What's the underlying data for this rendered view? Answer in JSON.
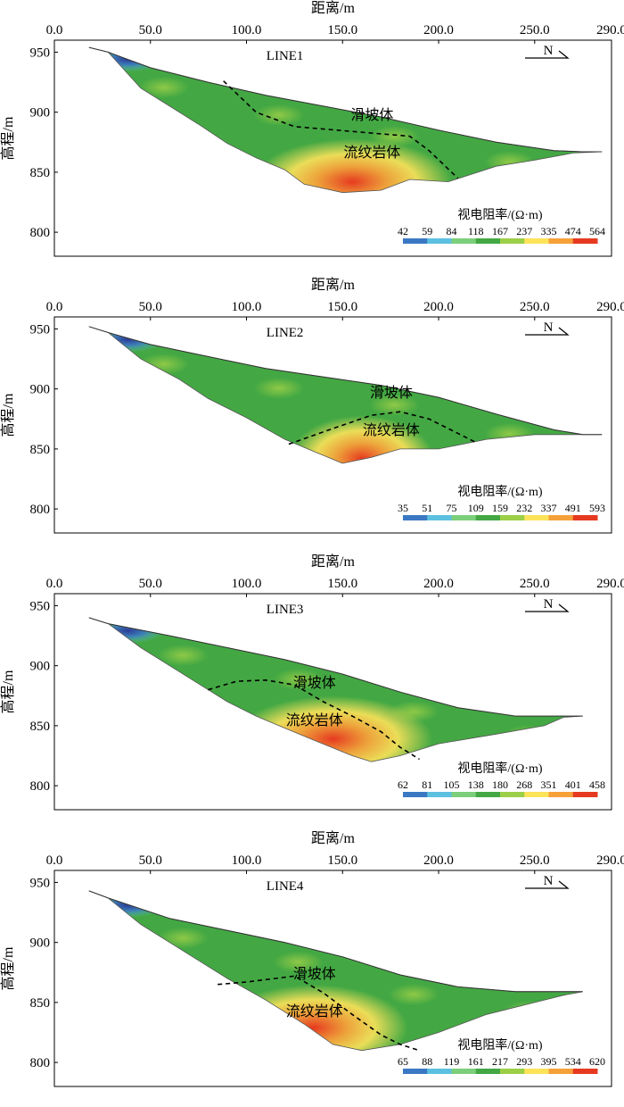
{
  "figure": {
    "xlabel": "距离/m",
    "ylabel": "高程/m",
    "north_label": "N",
    "colorbar_title": "视电阻率/(Ω·m)"
  },
  "colors": {
    "scale": [
      "#2c3a96",
      "#3b78c4",
      "#5cc0e0",
      "#7ccf7a",
      "#43a843",
      "#9ccf48",
      "#fde35a",
      "#f6a03a",
      "#e63a20"
    ],
    "frame": "#000000"
  },
  "chart_data": [
    {
      "type": "heatmap",
      "title": "LINE1",
      "x_ticks": [
        "0.0",
        "50.0",
        "100.0",
        "150.0",
        "200.0",
        "250.0",
        "290.0"
      ],
      "xlim": [
        0,
        290
      ],
      "y_ticks": [
        "950",
        "900",
        "850",
        "800"
      ],
      "ylim": [
        780,
        960
      ],
      "colorbar_labels": [
        "42",
        "59",
        "84",
        "118",
        "167",
        "237",
        "335",
        "474",
        "564"
      ],
      "labels": {
        "landslide": "滑坡体",
        "rhyolite": "流纹岩体"
      },
      "surface": [
        [
          18,
          954
        ],
        [
          28,
          950
        ],
        [
          50,
          937
        ],
        [
          80,
          925
        ],
        [
          110,
          914
        ],
        [
          140,
          905
        ],
        [
          170,
          896
        ],
        [
          200,
          885
        ],
        [
          230,
          875
        ],
        [
          260,
          868
        ],
        [
          275,
          867
        ],
        [
          285,
          867
        ]
      ],
      "bottom": [
        [
          28,
          950
        ],
        [
          45,
          920
        ],
        [
          60,
          905
        ],
        [
          75,
          890
        ],
        [
          90,
          874
        ],
        [
          105,
          862
        ],
        [
          120,
          852
        ],
        [
          130,
          840
        ],
        [
          150,
          833
        ],
        [
          170,
          835
        ],
        [
          185,
          844
        ],
        [
          205,
          842
        ],
        [
          230,
          855
        ],
        [
          250,
          860
        ],
        [
          270,
          866
        ]
      ],
      "boundary": [
        [
          88,
          926
        ],
        [
          105,
          900
        ],
        [
          125,
          888
        ],
        [
          170,
          882
        ],
        [
          185,
          880
        ],
        [
          195,
          868
        ],
        [
          210,
          845
        ]
      ],
      "high_zone": {
        "x": [
          115,
          205
        ],
        "center": [
          155,
          848
        ],
        "peak": 564
      }
    },
    {
      "type": "heatmap",
      "title": "LINE2",
      "x_ticks": [
        "0.0",
        "50.0",
        "100.0",
        "150.0",
        "200.0",
        "250.0",
        "290.0"
      ],
      "xlim": [
        0,
        290
      ],
      "y_ticks": [
        "950",
        "900",
        "850",
        "800"
      ],
      "ylim": [
        780,
        960
      ],
      "colorbar_labels": [
        "35",
        "51",
        "75",
        "109",
        "159",
        "232",
        "337",
        "491",
        "593"
      ],
      "labels": {
        "landslide": "滑坡体",
        "rhyolite": "流纹岩体"
      },
      "surface": [
        [
          18,
          952
        ],
        [
          28,
          947
        ],
        [
          50,
          937
        ],
        [
          80,
          927
        ],
        [
          110,
          917
        ],
        [
          140,
          910
        ],
        [
          170,
          903
        ],
        [
          200,
          893
        ],
        [
          230,
          879
        ],
        [
          260,
          866
        ],
        [
          275,
          862
        ],
        [
          285,
          862
        ]
      ],
      "bottom": [
        [
          28,
          947
        ],
        [
          45,
          925
        ],
        [
          65,
          908
        ],
        [
          80,
          892
        ],
        [
          100,
          876
        ],
        [
          120,
          858
        ],
        [
          135,
          848
        ],
        [
          150,
          838
        ],
        [
          165,
          843
        ],
        [
          180,
          850
        ],
        [
          200,
          850
        ],
        [
          225,
          858
        ],
        [
          250,
          862
        ],
        [
          270,
          862
        ]
      ],
      "boundary": [
        [
          122,
          854
        ],
        [
          145,
          867
        ],
        [
          165,
          878
        ],
        [
          180,
          881
        ],
        [
          195,
          875
        ],
        [
          210,
          863
        ],
        [
          220,
          855
        ]
      ],
      "high_zone": {
        "x": [
          130,
          195
        ],
        "center": [
          160,
          848
        ],
        "peak": 593
      }
    },
    {
      "type": "heatmap",
      "title": "LINE3",
      "x_ticks": [
        "0.0",
        "50.0",
        "100.0",
        "150.0",
        "200.0",
        "250.0",
        "290.0"
      ],
      "xlim": [
        0,
        290
      ],
      "y_ticks": [
        "950",
        "900",
        "850",
        "800"
      ],
      "ylim": [
        780,
        960
      ],
      "colorbar_labels": [
        "62",
        "81",
        "105",
        "138",
        "180",
        "268",
        "351",
        "401",
        "458"
      ],
      "labels": {
        "landslide": "滑坡体",
        "rhyolite": "流纹岩体"
      },
      "surface": [
        [
          18,
          940
        ],
        [
          28,
          935
        ],
        [
          60,
          925
        ],
        [
          90,
          915
        ],
        [
          120,
          905
        ],
        [
          150,
          893
        ],
        [
          180,
          878
        ],
        [
          210,
          865
        ],
        [
          240,
          858
        ],
        [
          260,
          858
        ],
        [
          275,
          858
        ]
      ],
      "bottom": [
        [
          28,
          935
        ],
        [
          45,
          915
        ],
        [
          60,
          900
        ],
        [
          75,
          885
        ],
        [
          90,
          870
        ],
        [
          105,
          858
        ],
        [
          120,
          848
        ],
        [
          135,
          838
        ],
        [
          155,
          825
        ],
        [
          165,
          820
        ],
        [
          180,
          825
        ],
        [
          200,
          835
        ],
        [
          230,
          843
        ],
        [
          255,
          850
        ],
        [
          265,
          857
        ]
      ],
      "boundary": [
        [
          80,
          880
        ],
        [
          95,
          887
        ],
        [
          110,
          888
        ],
        [
          125,
          884
        ],
        [
          140,
          870
        ],
        [
          155,
          858
        ],
        [
          170,
          845
        ],
        [
          180,
          832
        ],
        [
          190,
          822
        ]
      ],
      "high_zone": {
        "x": [
          95,
          185
        ],
        "center": [
          145,
          845
        ],
        "peak": 458
      }
    },
    {
      "type": "heatmap",
      "title": "LINE4",
      "x_ticks": [
        "0.0",
        "50.0",
        "100.0",
        "150.0",
        "200.0",
        "250.0",
        "290.0"
      ],
      "xlim": [
        0,
        290
      ],
      "y_ticks": [
        "950",
        "900",
        "850",
        "800"
      ],
      "ylim": [
        780,
        960
      ],
      "colorbar_labels": [
        "65",
        "88",
        "119",
        "161",
        "217",
        "293",
        "395",
        "534",
        "620"
      ],
      "labels": {
        "landslide": "滑坡体",
        "rhyolite": "流纹岩体"
      },
      "surface": [
        [
          18,
          943
        ],
        [
          28,
          937
        ],
        [
          60,
          920
        ],
        [
          90,
          910
        ],
        [
          120,
          900
        ],
        [
          150,
          888
        ],
        [
          180,
          873
        ],
        [
          210,
          863
        ],
        [
          240,
          859
        ],
        [
          265,
          859
        ],
        [
          275,
          859
        ]
      ],
      "bottom": [
        [
          28,
          937
        ],
        [
          45,
          915
        ],
        [
          60,
          900
        ],
        [
          75,
          885
        ],
        [
          90,
          870
        ],
        [
          110,
          852
        ],
        [
          130,
          832
        ],
        [
          145,
          815
        ],
        [
          160,
          810
        ],
        [
          180,
          815
        ],
        [
          200,
          825
        ],
        [
          225,
          840
        ],
        [
          250,
          850
        ],
        [
          265,
          856
        ]
      ],
      "boundary": [
        [
          85,
          865
        ],
        [
          100,
          867
        ],
        [
          115,
          870
        ],
        [
          125,
          872
        ],
        [
          140,
          858
        ],
        [
          155,
          840
        ],
        [
          170,
          823
        ],
        [
          180,
          815
        ],
        [
          190,
          810
        ]
      ],
      "high_zone": {
        "x": [
          90,
          175
        ],
        "center": [
          135,
          835
        ],
        "peak": 620
      }
    }
  ]
}
